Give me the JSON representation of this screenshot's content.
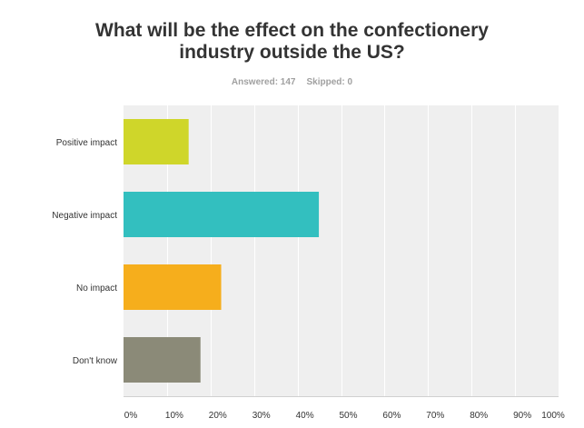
{
  "header": {
    "title_line1": "What will be the effect on the confectionery",
    "title_line2": "industry outside the US?",
    "answered_label": "Answered: 147",
    "skipped_label": "Skipped: 0"
  },
  "chart_data": {
    "type": "bar",
    "orientation": "horizontal",
    "categories": [
      "Positive impact",
      "Negative impact",
      "No impact",
      "Don't know"
    ],
    "values": [
      14.97,
      44.9,
      22.45,
      17.69
    ],
    "colors": [
      "#cfd62a",
      "#33bfbf",
      "#f6ae1c",
      "#8b8a78"
    ],
    "xlim": [
      0,
      100
    ],
    "xticks": [
      "0%",
      "10%",
      "20%",
      "30%",
      "40%",
      "50%",
      "60%",
      "70%",
      "80%",
      "90%",
      "100%"
    ],
    "grid": true,
    "legend": "none"
  }
}
